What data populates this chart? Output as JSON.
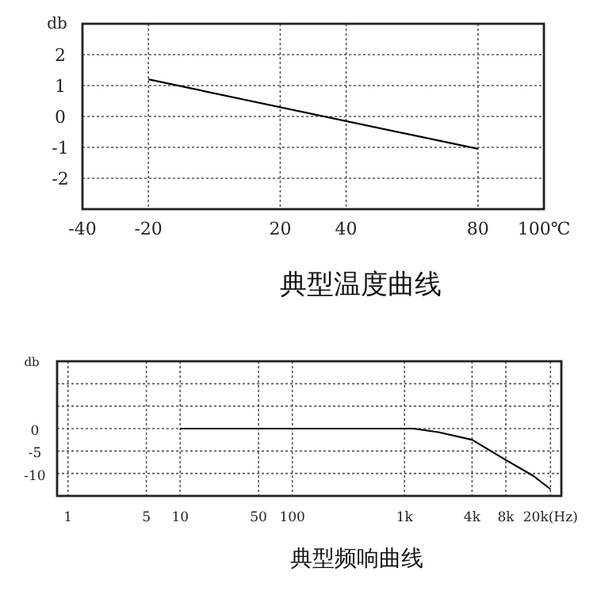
{
  "chart_data": [
    {
      "type": "line",
      "title": "典型温度曲线",
      "ylabel": "db",
      "x": [
        -20,
        80
      ],
      "series": [
        {
          "color": "#000000",
          "values": [
            1.2,
            -1.05
          ]
        }
      ],
      "xlim": [
        -40,
        100
      ],
      "xticks": [
        -40,
        -20,
        20,
        40,
        80,
        {
          "value": 100,
          "label": "100℃"
        }
      ],
      "ylim": [
        -3,
        3
      ],
      "yticks": [
        -2,
        -1,
        0,
        1,
        2
      ],
      "grid": true
    },
    {
      "type": "line",
      "title": "典型频响曲线",
      "ylabel": "db",
      "log": "x",
      "x": [
        10,
        1000,
        1200,
        2000,
        4000,
        8000,
        14000,
        20000
      ],
      "series": [
        {
          "color": "#000000",
          "values": [
            0,
            0,
            0,
            -0.8,
            -2.5,
            -7,
            -10.5,
            -13.5
          ]
        }
      ],
      "xlim": [
        0.8,
        25000
      ],
      "xticks": [
        1,
        5,
        10,
        50,
        100,
        {
          "value": 1000,
          "label": "1k"
        },
        {
          "value": 4000,
          "label": "4k"
        },
        {
          "value": 8000,
          "label": "8k"
        },
        {
          "value": 20000,
          "label": "20k(Hz)"
        }
      ],
      "ylim": [
        -15,
        15
      ],
      "yticks": [
        -10,
        -5,
        0,
        {
          "value": 5,
          "label": null
        },
        {
          "value": 10,
          "label": null
        }
      ],
      "grid": true
    }
  ]
}
